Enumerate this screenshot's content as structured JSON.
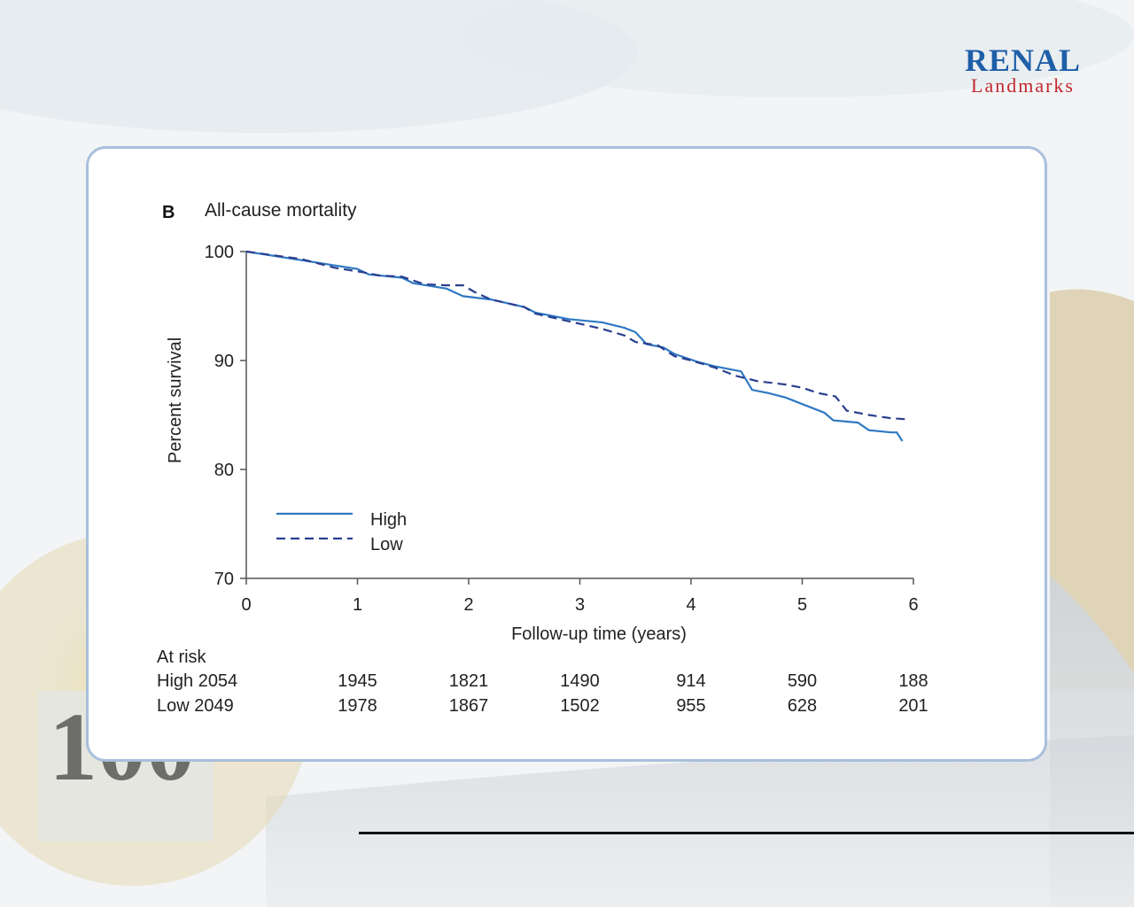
{
  "logo": {
    "main": "RENAL",
    "sub": "Landmarks",
    "badge": "100"
  },
  "colors": {
    "high": "#2f78c4",
    "low": "#2a3f8f",
    "logo_blue": "#1f5fa8",
    "logo_red": "#c0282d"
  },
  "chart_data": {
    "type": "line",
    "panel_label": "B",
    "title": "All-cause mortality",
    "xlabel": "Follow-up time (years)",
    "ylabel": "Percent survival",
    "xlim": [
      0,
      6
    ],
    "ylim": [
      70,
      100
    ],
    "xticks": [
      "0",
      "1",
      "2",
      "3",
      "4",
      "5",
      "6"
    ],
    "yticks": [
      "70",
      "80",
      "90",
      "100"
    ],
    "legend_position": "lower-left",
    "series": [
      {
        "name": "High",
        "style": "solid",
        "points": [
          [
            0,
            100
          ],
          [
            0.5,
            99.2
          ],
          [
            1,
            98.4
          ],
          [
            1.1,
            97.9
          ],
          [
            1.4,
            97.6
          ],
          [
            1.5,
            97.1
          ],
          [
            1.8,
            96.6
          ],
          [
            1.95,
            95.9
          ],
          [
            2.2,
            95.6
          ],
          [
            2.5,
            94.9
          ],
          [
            2.6,
            94.4
          ],
          [
            2.9,
            93.8
          ],
          [
            3.2,
            93.5
          ],
          [
            3.4,
            93.0
          ],
          [
            3.5,
            92.6
          ],
          [
            3.6,
            91.5
          ],
          [
            3.75,
            91.2
          ],
          [
            3.85,
            90.6
          ],
          [
            4.05,
            89.9
          ],
          [
            4.2,
            89.5
          ],
          [
            4.45,
            89.0
          ],
          [
            4.55,
            87.3
          ],
          [
            4.7,
            87.0
          ],
          [
            4.85,
            86.6
          ],
          [
            5.0,
            86.0
          ],
          [
            5.2,
            85.2
          ],
          [
            5.28,
            84.5
          ],
          [
            5.5,
            84.3
          ],
          [
            5.6,
            83.6
          ],
          [
            5.8,
            83.4
          ],
          [
            5.85,
            83.4
          ],
          [
            5.9,
            82.6
          ]
        ]
      },
      {
        "name": "Low",
        "style": "dashed",
        "points": [
          [
            0,
            100
          ],
          [
            0.5,
            99.3
          ],
          [
            0.8,
            98.5
          ],
          [
            1.05,
            98.1
          ],
          [
            1.2,
            97.8
          ],
          [
            1.4,
            97.7
          ],
          [
            1.6,
            97.0
          ],
          [
            1.8,
            96.9
          ],
          [
            1.95,
            96.9
          ],
          [
            2.05,
            96.3
          ],
          [
            2.2,
            95.6
          ],
          [
            2.5,
            94.9
          ],
          [
            2.6,
            94.3
          ],
          [
            2.9,
            93.6
          ],
          [
            3.2,
            92.9
          ],
          [
            3.4,
            92.3
          ],
          [
            3.5,
            91.7
          ],
          [
            3.7,
            91.4
          ],
          [
            3.85,
            90.4
          ],
          [
            4.0,
            90.0
          ],
          [
            4.2,
            89.4
          ],
          [
            4.4,
            88.6
          ],
          [
            4.6,
            88.1
          ],
          [
            4.85,
            87.8
          ],
          [
            5.0,
            87.5
          ],
          [
            5.15,
            87.0
          ],
          [
            5.3,
            86.7
          ],
          [
            5.4,
            85.4
          ],
          [
            5.6,
            85.0
          ],
          [
            5.8,
            84.7
          ],
          [
            5.95,
            84.6
          ]
        ]
      }
    ],
    "at_risk": {
      "header": "At risk",
      "time_points": [
        1,
        2,
        3,
        4,
        5,
        6
      ],
      "rows": [
        {
          "label": "High 2054",
          "values": [
            "1945",
            "1821",
            "1490",
            "914",
            "590",
            "188"
          ]
        },
        {
          "label": "Low 2049",
          "values": [
            "1978",
            "1867",
            "1502",
            "955",
            "628",
            "201"
          ]
        }
      ]
    }
  }
}
